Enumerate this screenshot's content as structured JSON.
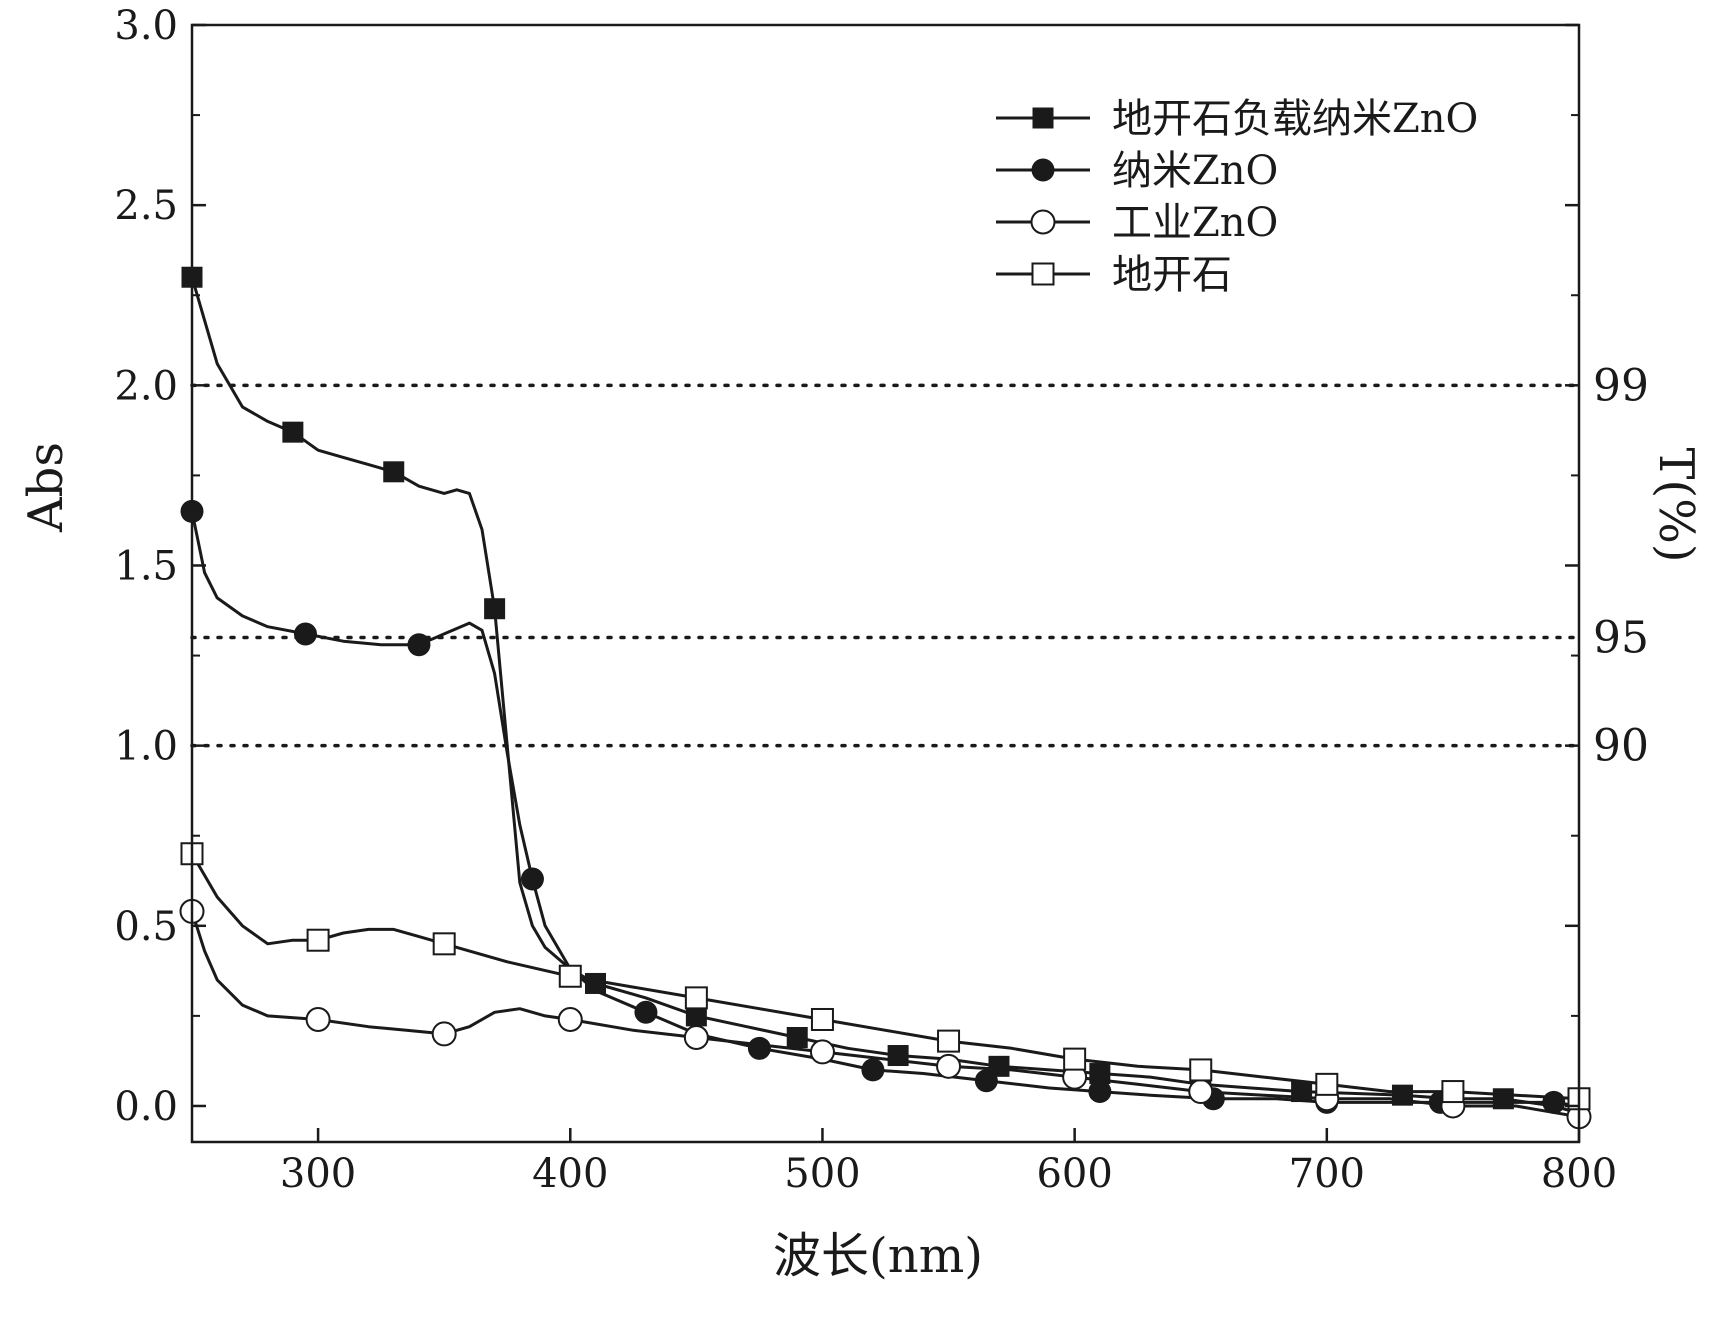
{
  "chart_data": {
    "type": "line",
    "xlabel": "波长(nm)",
    "ylabel": "Abs",
    "y2label": "T(%)",
    "xlim": [
      250,
      800
    ],
    "ylim": [
      0,
      3.0
    ],
    "xticks": [
      300,
      400,
      500,
      600,
      700,
      800
    ],
    "yticks": [
      0.0,
      0.5,
      1.0,
      1.5,
      2.0,
      2.5,
      3.0
    ],
    "ytick_labels": [
      "0.0",
      "0.5",
      "1.0",
      "1.5",
      "2.0",
      "2.5",
      "3.0"
    ],
    "reference_lines": [
      {
        "abs": 2.0,
        "label": "99"
      },
      {
        "abs": 1.3,
        "label": "95"
      },
      {
        "abs": 1.0,
        "label": "90"
      }
    ],
    "legend_position": "top-right",
    "grid": false,
    "series": [
      {
        "name": "地开石负载纳米ZnO",
        "marker": "filled-square",
        "x": [
          250,
          260,
          270,
          280,
          290,
          300,
          310,
          320,
          330,
          340,
          350,
          355,
          360,
          365,
          370,
          375,
          380,
          385,
          390,
          400,
          410,
          430,
          450,
          470,
          490,
          510,
          530,
          550,
          570,
          590,
          610,
          630,
          650,
          670,
          690,
          710,
          730,
          750,
          770,
          790,
          800
        ],
        "y": [
          2.3,
          2.06,
          1.94,
          1.9,
          1.87,
          1.82,
          1.8,
          1.78,
          1.76,
          1.72,
          1.7,
          1.71,
          1.7,
          1.6,
          1.38,
          1.0,
          0.62,
          0.5,
          0.44,
          0.38,
          0.34,
          0.3,
          0.25,
          0.22,
          0.19,
          0.16,
          0.14,
          0.13,
          0.11,
          0.1,
          0.09,
          0.08,
          0.06,
          0.05,
          0.04,
          0.035,
          0.03,
          0.02,
          0.02,
          0.0,
          -0.02
        ],
        "marker_x": [
          250,
          290,
          330,
          370,
          410,
          450,
          490,
          530,
          570,
          610,
          650,
          690,
          730,
          770
        ]
      },
      {
        "name": "纳米ZnO",
        "marker": "filled-circle",
        "x": [
          250,
          255,
          260,
          270,
          280,
          295,
          310,
          325,
          340,
          350,
          360,
          365,
          370,
          375,
          380,
          385,
          390,
          400,
          410,
          430,
          450,
          475,
          500,
          520,
          540,
          565,
          590,
          610,
          630,
          655,
          680,
          700,
          720,
          745,
          770,
          790,
          800
        ],
        "y": [
          1.65,
          1.48,
          1.41,
          1.36,
          1.33,
          1.31,
          1.29,
          1.28,
          1.28,
          1.31,
          1.34,
          1.32,
          1.2,
          0.98,
          0.78,
          0.63,
          0.5,
          0.38,
          0.32,
          0.26,
          0.2,
          0.16,
          0.13,
          0.1,
          0.09,
          0.07,
          0.05,
          0.04,
          0.03,
          0.02,
          0.02,
          0.01,
          0.01,
          0.01,
          0.01,
          0.01,
          0.0
        ],
        "marker_x": [
          250,
          295,
          340,
          385,
          430,
          475,
          520,
          565,
          610,
          655,
          700,
          745,
          790
        ]
      },
      {
        "name": "工业ZnO",
        "marker": "open-circle",
        "x": [
          250,
          255,
          260,
          270,
          280,
          300,
          320,
          335,
          350,
          360,
          370,
          380,
          390,
          400,
          425,
          450,
          475,
          500,
          525,
          550,
          575,
          600,
          625,
          650,
          675,
          700,
          725,
          750,
          775,
          800
        ],
        "y": [
          0.54,
          0.43,
          0.35,
          0.28,
          0.25,
          0.24,
          0.22,
          0.21,
          0.2,
          0.22,
          0.26,
          0.27,
          0.25,
          0.24,
          0.21,
          0.19,
          0.17,
          0.15,
          0.13,
          0.11,
          0.1,
          0.08,
          0.06,
          0.04,
          0.03,
          0.02,
          0.02,
          0.0,
          0.0,
          -0.03
        ],
        "marker_x": [
          250,
          300,
          350,
          400,
          450,
          500,
          550,
          600,
          650,
          700,
          750,
          800
        ]
      },
      {
        "name": "地开石",
        "marker": "open-square",
        "x": [
          250,
          260,
          270,
          280,
          290,
          300,
          310,
          320,
          330,
          340,
          350,
          375,
          400,
          425,
          450,
          475,
          500,
          525,
          550,
          575,
          600,
          625,
          650,
          675,
          700,
          725,
          750,
          775,
          800
        ],
        "y": [
          0.7,
          0.58,
          0.5,
          0.45,
          0.46,
          0.46,
          0.48,
          0.49,
          0.49,
          0.47,
          0.45,
          0.4,
          0.36,
          0.33,
          0.3,
          0.27,
          0.24,
          0.21,
          0.18,
          0.16,
          0.13,
          0.11,
          0.1,
          0.08,
          0.06,
          0.04,
          0.04,
          0.03,
          0.02
        ],
        "marker_x": [
          250,
          300,
          350,
          400,
          450,
          500,
          550,
          600,
          650,
          700,
          750,
          800
        ]
      }
    ]
  }
}
